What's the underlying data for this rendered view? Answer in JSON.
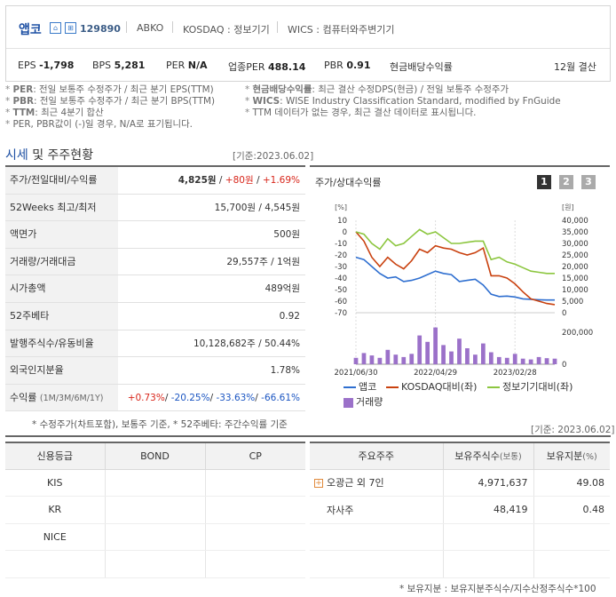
{
  "company": {
    "name": "앱코",
    "code": "129890",
    "exchange_label": "ABKO",
    "market": "KOSDAQ : 정보기기",
    "wics": "WICS : 컴퓨터와주변기기"
  },
  "metrics": {
    "eps_label": "EPS",
    "eps": "-1,798",
    "bps_label": "BPS",
    "bps": "5,281",
    "per_label": "PER",
    "per": "N/A",
    "industry_per_label": "업종PER",
    "industry_per": "488.14",
    "pbr_label": "PBR",
    "pbr": "0.91",
    "dividend_label": "현금배당수익률",
    "settlement": "12월 결산"
  },
  "notes": {
    "left": [
      {
        "key": "PER",
        "text": ": 전일 보통주 수정주가 / 최근 분기 EPS(TTM)"
      },
      {
        "key": "PBR",
        "text": ": 전일 보통주 수정주가 / 최근 분기 BPS(TTM)"
      },
      {
        "key": "TTM",
        "text": ": 최근 4분기 합산"
      },
      {
        "key": "",
        "text": "PER, PBR값이 (-)일 경우, N/A로 표기됩니다."
      }
    ],
    "right": [
      {
        "key": "현금배당수익률",
        "text": ": 최근 결산 수정DPS(현금) / 전일 보통주 수정주가"
      },
      {
        "key": "WICS",
        "text": ": WISE Industry Classification Standard, modified by FnGuide"
      },
      {
        "key": "",
        "text": "TTM 데이터가 없는 경우, 최근 결산 데이터로 표시됩니다."
      }
    ]
  },
  "section": {
    "title_a": "시세",
    "title_b": "및 주주현황",
    "base_date": "[기준:2023.06.02]",
    "base_date2": "[기준: 2023.06.02]"
  },
  "market_table": [
    {
      "label": "주가/전일대비/수익률",
      "v1": "4,825원",
      "v2": "+80원",
      "v3": "+1.69%"
    },
    {
      "label": "52Weeks 최고/최저",
      "value": "15,700원 / 4,545원"
    },
    {
      "label": "액면가",
      "value": "500원"
    },
    {
      "label": "거래량/거래대금",
      "value": "29,557주 / 1억원"
    },
    {
      "label": "시가총액",
      "value": "489억원"
    },
    {
      "label": "52주베타",
      "value": "0.92"
    },
    {
      "label": "발행주식수/유동비율",
      "value": "10,128,682주 / 50.44%"
    },
    {
      "label": "외국인지분율",
      "value": "1.78%"
    },
    {
      "label": "수익률",
      "sub": "(1M/3M/6M/1Y)",
      "r1": "+0.73%",
      "r2": "-20.25%",
      "r3": "-33.63%",
      "r4": "-66.61%"
    }
  ],
  "market_footnote": "* 수정주가(차트포함), 보통주 기준, * 52주베타: 주간수익률 기준",
  "chart": {
    "title": "주가/상대수익률",
    "pages": [
      "1",
      "2",
      "3"
    ],
    "left_unit": "[%]",
    "right_unit": "[원]",
    "legend": [
      {
        "name": "앱코",
        "color": "#2f6fd0"
      },
      {
        "name": "KOSDAQ대비(좌)",
        "color": "#c9410f"
      },
      {
        "name": "정보기기대비(좌)",
        "color": "#8cc63f"
      },
      {
        "name": "거래량",
        "color": "#9b71c9"
      }
    ]
  },
  "chart_data": {
    "type": "line",
    "x_labels": [
      "2021/06/30",
      "2022/04/29",
      "2023/02/28"
    ],
    "y_left": {
      "label": "[%]",
      "ticks": [
        10,
        0,
        -10,
        -20,
        -30,
        -40,
        -50,
        -60,
        -70
      ],
      "ylim": [
        -70,
        10
      ]
    },
    "y_right": {
      "label": "[원]",
      "ticks": [
        40000,
        35000,
        30000,
        25000,
        20000,
        15000,
        10000,
        5000,
        0
      ],
      "ylim": [
        0,
        40000
      ]
    },
    "volume_axis": {
      "ticks": [
        200000,
        0
      ]
    },
    "series": [
      {
        "name": "앱코",
        "axis": "right",
        "values": [
          24000,
          23000,
          20000,
          17000,
          15000,
          15500,
          13500,
          14000,
          15000,
          16500,
          18000,
          17000,
          16500,
          13500,
          14000,
          14500,
          12000,
          8000,
          7000,
          7200,
          6800,
          6000,
          5800,
          5600,
          5500,
          5500
        ]
      },
      {
        "name": "KOSDAQ대비(좌)",
        "axis": "left",
        "values": [
          0,
          -8,
          -22,
          -30,
          -22,
          -28,
          -32,
          -25,
          -15,
          -18,
          -12,
          -14,
          -15,
          -18,
          -20,
          -18,
          -14,
          -38,
          -38,
          -40,
          -45,
          -52,
          -58,
          -60,
          -62,
          -63
        ]
      },
      {
        "name": "정보기기대비(좌)",
        "axis": "left",
        "values": [
          0,
          -2,
          -10,
          -15,
          -6,
          -12,
          -10,
          -4,
          2,
          -2,
          0,
          -5,
          -10,
          -10,
          -9,
          -8,
          -8,
          -24,
          -22,
          -26,
          -28,
          -31,
          -34,
          -35,
          -36,
          -36
        ]
      }
    ],
    "volume": [
      40000,
      70000,
      55000,
      40000,
      90000,
      60000,
      45000,
      65000,
      180000,
      140000,
      230000,
      120000,
      80000,
      160000,
      100000,
      60000,
      130000,
      75000,
      45000,
      40000,
      65000,
      35000,
      30000,
      45000,
      38000,
      35000
    ]
  },
  "credit": {
    "headers": [
      "신용등급",
      "BOND",
      "CP"
    ],
    "rows": [
      "KIS",
      "KR",
      "NICE"
    ]
  },
  "shareholders": {
    "headers": [
      "주요주주",
      "보유주식수",
      "(보통)",
      "보유지분",
      "(%)"
    ],
    "rows": [
      {
        "name": "오광근 외 7인",
        "shares": "4,971,637",
        "pct": "49.08"
      },
      {
        "name": "자사주",
        "shares": "48,419",
        "pct": "0.48"
      }
    ],
    "footnote": "* 보유지분 : 보유지분주식수/지수산정주식수*100"
  }
}
